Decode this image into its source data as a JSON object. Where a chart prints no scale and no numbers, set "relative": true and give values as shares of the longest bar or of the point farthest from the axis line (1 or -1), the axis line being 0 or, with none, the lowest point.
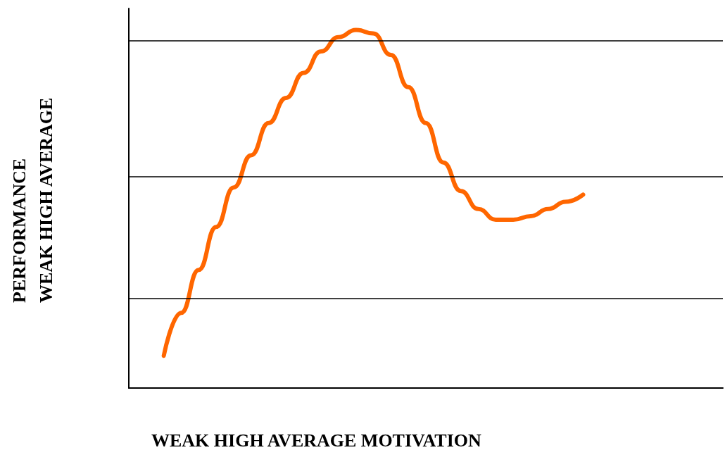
{
  "chart_data": {
    "type": "line",
    "relative": true,
    "xlabel": "WEAK HIGH AVERAGE MOTIVATION",
    "ylabel": "PERFORMANCE\nWEAK HIGH AVERAGE",
    "categories": [
      null,
      null,
      null,
      null,
      null,
      null,
      null,
      null,
      null,
      null,
      null,
      null,
      null,
      null,
      null,
      null,
      null,
      null,
      null,
      null,
      null,
      null,
      null,
      null,
      null,
      null,
      null,
      null,
      null,
      null,
      null,
      null,
      null,
      null,
      null
    ],
    "series": [
      {
        "color": "#ff6600",
        "values": [
          null,
          null,
          0.09,
          0.21,
          0.33,
          0.45,
          0.56,
          0.65,
          0.74,
          0.81,
          0.88,
          0.94,
          0.98,
          1,
          0.99,
          0.93,
          0.84,
          0.74,
          0.63,
          0.55,
          0.5,
          0.47,
          0.47,
          0.48,
          0.5,
          0.52,
          0.54,
          null,
          null,
          null,
          null,
          null,
          null,
          null,
          null
        ]
      }
    ],
    "ref_lines": [
      {
        "axis": "y",
        "value": 0.97,
        "color": "#000000"
      },
      {
        "axis": "y",
        "value": 0.59,
        "color": "#000000"
      },
      {
        "axis": "y",
        "value": 0.25,
        "color": "#000000"
      }
    ],
    "marker": "none",
    "line_style": "solid",
    "grid": false
  }
}
